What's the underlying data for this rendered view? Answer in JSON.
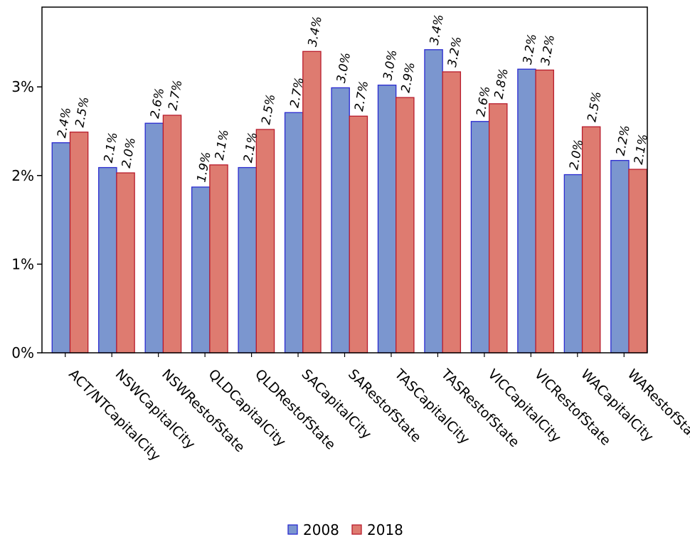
{
  "chart_data": {
    "type": "bar",
    "categories": [
      "ACT/NTCapitalCity",
      "NSWCapitalCity",
      "NSWRestofState",
      "QLDCapitalCity",
      "QLDRestofState",
      "SACapitalCity",
      "SARestofState",
      "TASCapitalCity",
      "TASRestofState",
      "VICCapitalCity",
      "VICRestofState",
      "WACapitalCity",
      "WARestofState"
    ],
    "series": [
      {
        "name": "2008",
        "color": "#7b96cf",
        "stroke": "#2b2bd0",
        "values": [
          2.37,
          2.09,
          2.59,
          1.87,
          2.09,
          2.71,
          2.99,
          3.02,
          3.42,
          2.61,
          3.2,
          2.01,
          2.17
        ],
        "labels": [
          "2.4%",
          "2.1%",
          "2.6%",
          "1.9%",
          "2.1%",
          "2.7%",
          "3.0%",
          "3.0%",
          "3.4%",
          "2.6%",
          "3.2%",
          "2.0%",
          "2.2%"
        ]
      },
      {
        "name": "2018",
        "color": "#de7b70",
        "stroke": "#b81c2c",
        "values": [
          2.49,
          2.03,
          2.68,
          2.12,
          2.52,
          3.4,
          2.67,
          2.88,
          3.17,
          2.81,
          3.19,
          2.55,
          2.07
        ],
        "labels": [
          "2.5%",
          "2.0%",
          "2.7%",
          "2.1%",
          "2.5%",
          "3.4%",
          "2.7%",
          "2.9%",
          "3.2%",
          "2.8%",
          "3.2%",
          "2.5%",
          "2.1%"
        ]
      }
    ],
    "yticks": [
      {
        "value": 0,
        "label": "0%"
      },
      {
        "value": 1,
        "label": "1%"
      },
      {
        "value": 2,
        "label": "2%"
      },
      {
        "value": 3,
        "label": "3%"
      }
    ],
    "ylim": [
      0,
      3.9
    ],
    "grid": false,
    "legend_position": "bottom-center"
  }
}
